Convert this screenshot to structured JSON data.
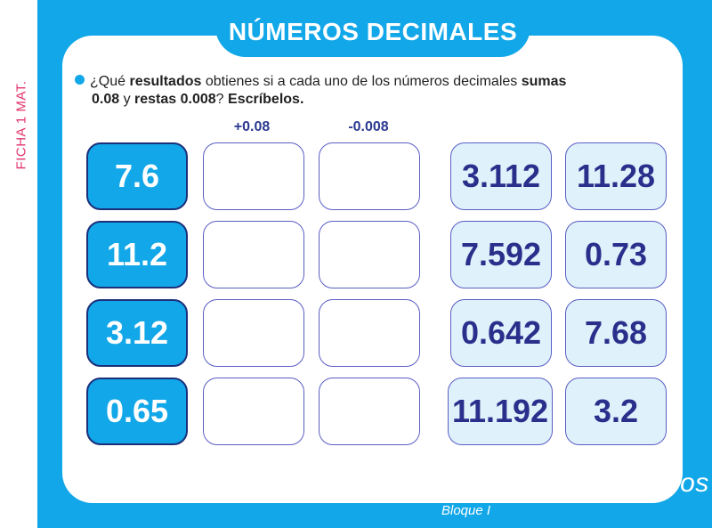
{
  "side_label": "FICHA 1 MAT.",
  "title": "NÚMEROS DECIMALES",
  "prompt": {
    "p1": "¿Qué ",
    "b1": "resultados",
    "p2": " obtienes si a cada uno de los números decimales ",
    "b2": "sumas",
    "b3": "0.08",
    "p3": " y ",
    "b4": "restas 0.008",
    "p4": "? ",
    "b5": "Escríbelos."
  },
  "column_headers": {
    "add": "+0.08",
    "subtract": "-0.008"
  },
  "numbers": [
    "7.6",
    "11.2",
    "3.12",
    "0.65"
  ],
  "answers": [
    [
      "3.112",
      "11.28"
    ],
    [
      "7.592",
      "0.73"
    ],
    [
      "0.642",
      "7.68"
    ],
    [
      "11.192",
      "3.2"
    ]
  ],
  "brand": {
    "title": "Desafíos Matemáticos",
    "subtitle": "Bloque I"
  },
  "colors": {
    "frame": "#12a7e8",
    "answer_bg": "#dff1fb",
    "ink": "#2b2f8c",
    "side_label": "#e0336b"
  }
}
